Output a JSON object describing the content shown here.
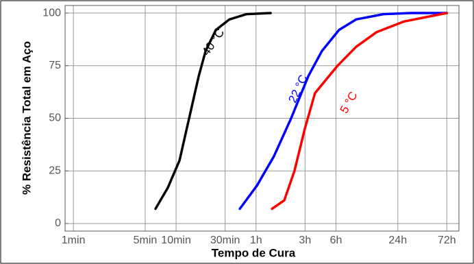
{
  "chart_data": {
    "type": "line",
    "xlabel": "Tempo de Cura",
    "ylabel": "% Resistência Total em Aço",
    "xscale": "log",
    "xlim": [
      0.83,
      5670
    ],
    "ylim": [
      -3.6,
      103.6
    ],
    "xticks": [
      {
        "value": 1,
        "label": "1min"
      },
      {
        "value": 5,
        "label": "5min"
      },
      {
        "value": 10,
        "label": "10min"
      },
      {
        "value": 30,
        "label": "30min"
      },
      {
        "value": 60,
        "label": "1h"
      },
      {
        "value": 180,
        "label": "3h"
      },
      {
        "value": 360,
        "label": "6h"
      },
      {
        "value": 1440,
        "label": "24h"
      },
      {
        "value": 4320,
        "label": "72h"
      }
    ],
    "yticks": [
      0,
      25,
      50,
      75,
      100
    ],
    "grid": true,
    "series": [
      {
        "name": "40 °C",
        "color": "#000000",
        "x": [
          6.3,
          8.3,
          10.8,
          13.4,
          16.6,
          19.4,
          24.4,
          33.1,
          48.6,
          83.2
        ],
        "values": [
          7,
          17,
          30,
          50,
          70,
          82,
          92,
          97,
          99.5,
          100
        ]
      },
      {
        "name": "22 °C",
        "color": "#0000ff",
        "x": [
          41.7,
          61.2,
          89.8,
          131.8,
          193.6,
          263,
          386,
          567,
          1047,
          1936,
          4320
        ],
        "values": [
          7,
          18,
          32,
          50,
          70,
          82,
          92,
          97,
          99.5,
          100,
          100
        ]
      },
      {
        "name": "5 °C",
        "color": "#ff0000",
        "x": [
          85.8,
          113,
          142,
          179,
          225,
          374,
          567,
          898,
          1660,
          4320
        ],
        "values": [
          7,
          11,
          25,
          45,
          62,
          75,
          84,
          91,
          96,
          100
        ]
      }
    ]
  }
}
